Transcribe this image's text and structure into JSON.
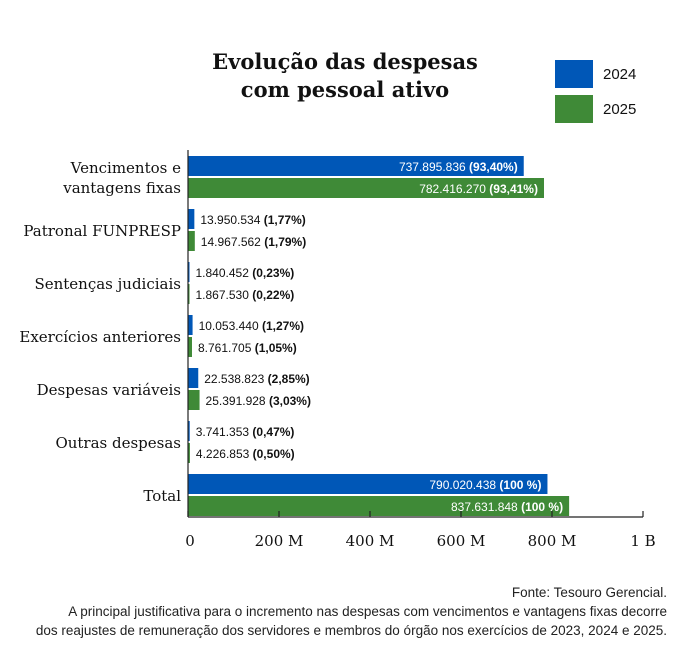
{
  "chart_data": {
    "type": "bar",
    "orientation": "horizontal",
    "title": "Evolução das despesas com pessoal ativo",
    "title_lines": [
      "Evolução das despesas",
      "com pessoal ativo"
    ],
    "categories": [
      [
        "Vencimentos e",
        "vantagens fixas"
      ],
      [
        "Patronal FUNPRESP"
      ],
      [
        "Sentenças judiciais"
      ],
      [
        "Exercícios anteriores"
      ],
      [
        "Despesas variáveis"
      ],
      [
        "Outras despesas"
      ],
      [
        "Total"
      ]
    ],
    "series": [
      {
        "name": "2024",
        "color": "#0057b7",
        "values": [
          737895836,
          13950534,
          1840452,
          10053440,
          22538823,
          3741353,
          790020438
        ],
        "labels": [
          "737.895.836",
          "13.950.534",
          "1.840.452",
          "10.053.440",
          "22.538.823",
          "3.741.353",
          "790.020.438"
        ],
        "pct_labels": [
          "(93,40%)",
          "(1,77%)",
          "(0,23%)",
          "(1,27%)",
          "(2,85%)",
          "(0,47%)",
          "(100 %)"
        ]
      },
      {
        "name": "2025",
        "color": "#3f8a37",
        "values": [
          782416270,
          14967562,
          1867530,
          8761705,
          25391928,
          4226853,
          837631848
        ],
        "labels": [
          "782.416.270",
          "14.967.562",
          "1.867.530",
          "8.761.705",
          "25.391.928",
          "4.226.853",
          "837.631.848"
        ],
        "pct_labels": [
          "(93,41%)",
          "(1,79%)",
          "(0,22%)",
          "(1,05%)",
          "(3,03%)",
          "(0,50%)",
          "(100 %)"
        ]
      }
    ],
    "xlim": [
      0,
      1000000000
    ],
    "xticks": [
      0,
      200000000,
      400000000,
      600000000,
      800000000,
      1000000000
    ],
    "xtick_labels": [
      "0",
      "200 M",
      "400 M",
      "600 M",
      "800 M",
      "1 B"
    ],
    "grid": false,
    "legend_position": "top-right"
  },
  "footer": {
    "source": "Fonte: Tesouro Gerencial.",
    "note_line1": "A principal justificativa para o incremento nas despesas com vencimentos e vantagens fixas decorre",
    "note_line2": "dos reajustes de remuneração dos servidores e membros do órgão nos exercícios de 2023, 2024 e 2025."
  }
}
